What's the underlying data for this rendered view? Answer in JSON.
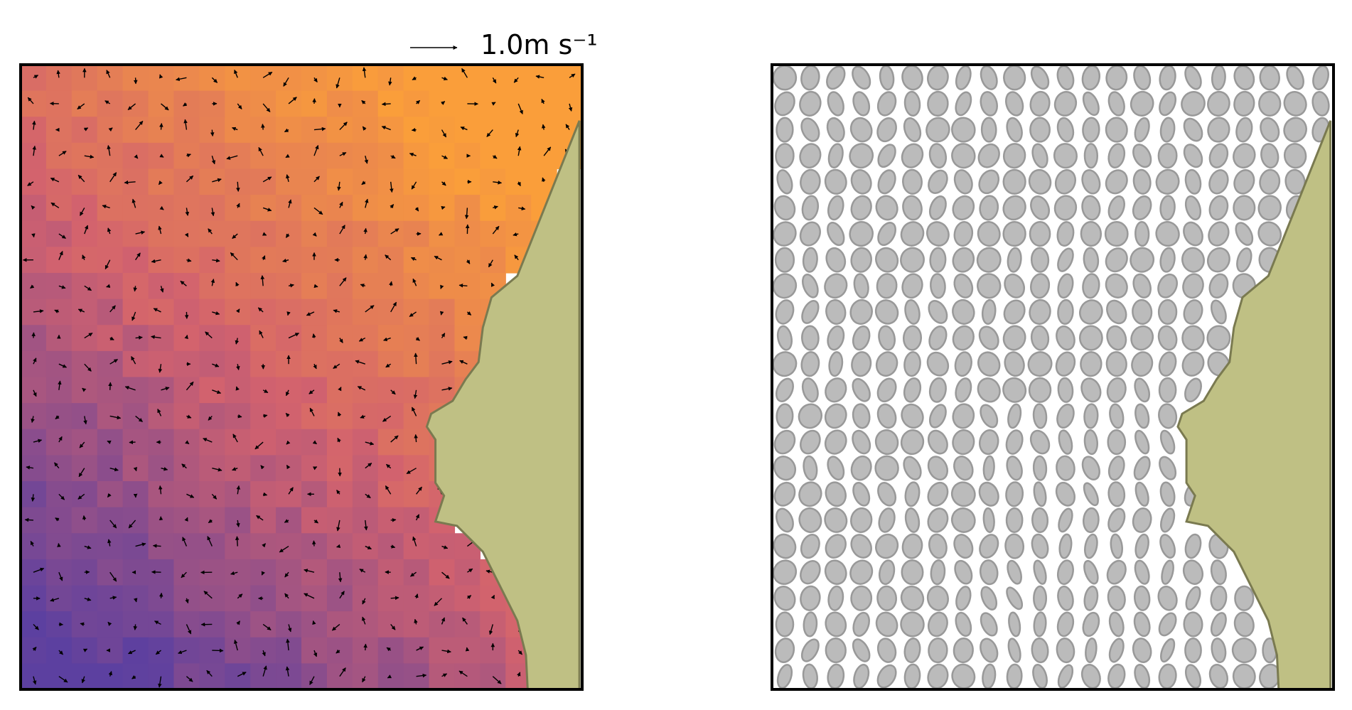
{
  "key_label": "1.0m s⁻¹"
}
